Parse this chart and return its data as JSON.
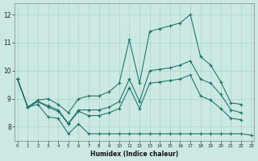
{
  "xlabel": "Humidex (Indice chaleur)",
  "xlim": [
    -0.3,
    23.3
  ],
  "ylim": [
    7.5,
    12.4
  ],
  "xticks": [
    0,
    1,
    2,
    3,
    4,
    5,
    6,
    7,
    8,
    9,
    10,
    11,
    12,
    13,
    14,
    15,
    16,
    17,
    18,
    19,
    20,
    21,
    22,
    23
  ],
  "yticks": [
    8,
    9,
    10,
    11,
    12
  ],
  "bg_color": "#cce8e2",
  "line_color": "#1a7068",
  "grid_color": "#aad4ca",
  "line_upper_x": [
    0,
    1,
    2,
    3,
    4,
    5,
    6,
    7,
    8,
    9,
    10,
    11,
    12,
    13,
    14,
    15,
    16,
    17,
    18,
    19,
    20,
    21,
    22
  ],
  "line_upper_y": [
    9.7,
    8.7,
    8.95,
    9.0,
    8.8,
    8.5,
    9.0,
    9.1,
    9.1,
    9.25,
    9.55,
    11.1,
    9.55,
    11.4,
    11.5,
    11.6,
    11.7,
    12.0,
    10.5,
    10.2,
    9.6,
    8.85,
    8.8
  ],
  "line_lower_x": [
    0,
    1,
    2,
    3,
    4,
    5,
    6,
    7,
    8,
    9,
    10,
    11,
    12,
    13,
    14,
    15,
    16,
    17,
    18,
    19,
    20,
    21,
    22,
    23
  ],
  "line_lower_y": [
    9.7,
    8.7,
    8.8,
    8.35,
    8.3,
    7.75,
    8.1,
    7.75,
    7.75,
    7.75,
    7.75,
    7.75,
    7.75,
    7.75,
    7.75,
    7.75,
    7.75,
    7.75,
    7.75,
    7.75,
    7.75,
    7.75,
    7.75,
    7.7
  ],
  "line_mean_x": [
    0,
    1,
    2,
    3,
    4,
    5,
    6,
    7,
    8,
    9,
    10,
    11,
    12,
    13,
    14,
    15,
    16,
    17,
    18,
    19,
    20,
    21,
    22
  ],
  "line_mean_y": [
    9.7,
    8.7,
    8.9,
    8.7,
    8.55,
    8.1,
    8.55,
    8.4,
    8.4,
    8.5,
    8.65,
    9.4,
    8.65,
    9.55,
    9.6,
    9.65,
    9.7,
    9.85,
    9.1,
    8.95,
    8.65,
    8.3,
    8.25
  ],
  "line_trend_x": [
    0,
    1,
    2,
    3,
    4,
    5,
    6,
    7,
    8,
    9,
    10,
    11,
    12,
    13,
    14,
    15,
    16,
    17,
    18,
    19,
    20,
    21,
    22
  ],
  "line_trend_y": [
    9.7,
    8.7,
    8.9,
    8.75,
    8.6,
    8.12,
    8.6,
    8.6,
    8.6,
    8.7,
    8.9,
    9.7,
    8.9,
    10.0,
    10.05,
    10.1,
    10.2,
    10.35,
    9.7,
    9.55,
    9.15,
    8.6,
    8.5
  ]
}
